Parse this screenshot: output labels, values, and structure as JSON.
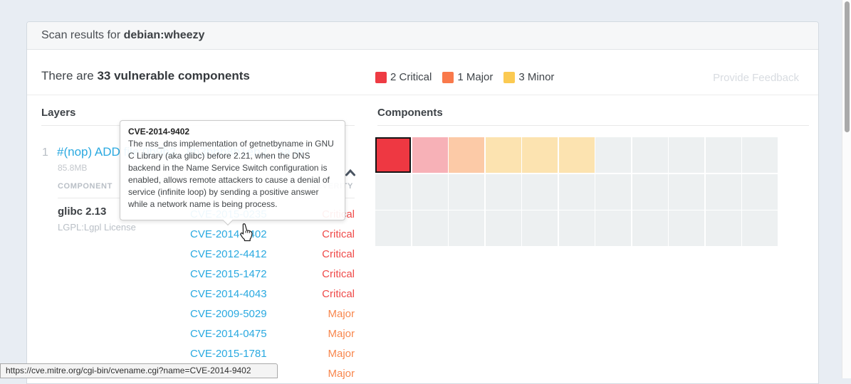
{
  "header": {
    "title_prefix": "Scan results for ",
    "title_repo": "debian:wheezy"
  },
  "summary": {
    "count_prefix": "There are ",
    "count_bold": "33 vulnerable components",
    "legend": [
      {
        "label": "2 Critical",
        "color": "#ee3b43"
      },
      {
        "label": "1 Major",
        "color": "#f9794b"
      },
      {
        "label": "3 Minor",
        "color": "#fbca52"
      }
    ],
    "feedback_label": "Provide Feedback"
  },
  "layers": {
    "heading": "Layers",
    "layer": {
      "index": "1",
      "title": "#(nop) ADD file:0b9b2...8b3bbb8b1eb2...5a in /",
      "size": "85.8MB",
      "component_header": "COMPONENT",
      "severity_header": "SEVERITY",
      "component": {
        "name": "glibc 2.13",
        "license": "LGPL:Lgpl License"
      },
      "vulnerabilities": [
        {
          "cve": "CVE-2015-0235",
          "severity": "Critical"
        },
        {
          "cve": "CVE-2014-9402",
          "severity": "Critical"
        },
        {
          "cve": "CVE-2012-4412",
          "severity": "Critical"
        },
        {
          "cve": "CVE-2015-1472",
          "severity": "Critical"
        },
        {
          "cve": "CVE-2014-4043",
          "severity": "Critical"
        },
        {
          "cve": "CVE-2009-5029",
          "severity": "Major"
        },
        {
          "cve": "CVE-2014-0475",
          "severity": "Major"
        },
        {
          "cve": "CVE-2015-1781",
          "severity": "Major"
        },
        {
          "cve": "",
          "severity": "Major"
        }
      ]
    }
  },
  "components_panel": {
    "heading": "Components"
  },
  "chart_data": {
    "type": "heatmap",
    "title": "Components",
    "columns": 11,
    "rows": 3,
    "legend": [
      "2 Critical",
      "1 Major",
      "3 Minor"
    ],
    "palette": {
      "critical_selected": "#ee3842",
      "critical_light": "#f7b1b7",
      "major_light": "#fccaa7",
      "minor_light": "#fce3b0",
      "none": "#edf0f1"
    },
    "cells": [
      "critical_selected",
      "critical_light",
      "major_light",
      "minor_light",
      "minor_light",
      "minor_light",
      "none",
      "none",
      "none",
      "none",
      "none",
      "none",
      "none",
      "none",
      "none",
      "none",
      "none",
      "none",
      "none",
      "none",
      "none",
      "none",
      "none",
      "none",
      "none",
      "none",
      "none",
      "none",
      "none",
      "none",
      "none",
      "none",
      "none"
    ],
    "selected_cell_index": 0
  },
  "tooltip": {
    "title": "CVE-2014-9402",
    "body": "The nss_dns implementation of getnetbyname in GNU C Library (aka glibc) before 2.21, when the DNS backend in the Name Service Switch configuration is enabled, allows remote attackers to cause a denial of service (infinite loop) by sending a positive answer while a network name is being process."
  },
  "statusbar": {
    "url": "https://cve.mitre.org/cgi-bin/cvename.cgi?name=CVE-2014-9402"
  },
  "colors": {
    "severity_text": {
      "Critical": "#ef4a49",
      "Major": "#f8874e",
      "Minor": "#fbc94e"
    },
    "cve_link": "#29a9e0",
    "page_background": "#e8edf3"
  }
}
